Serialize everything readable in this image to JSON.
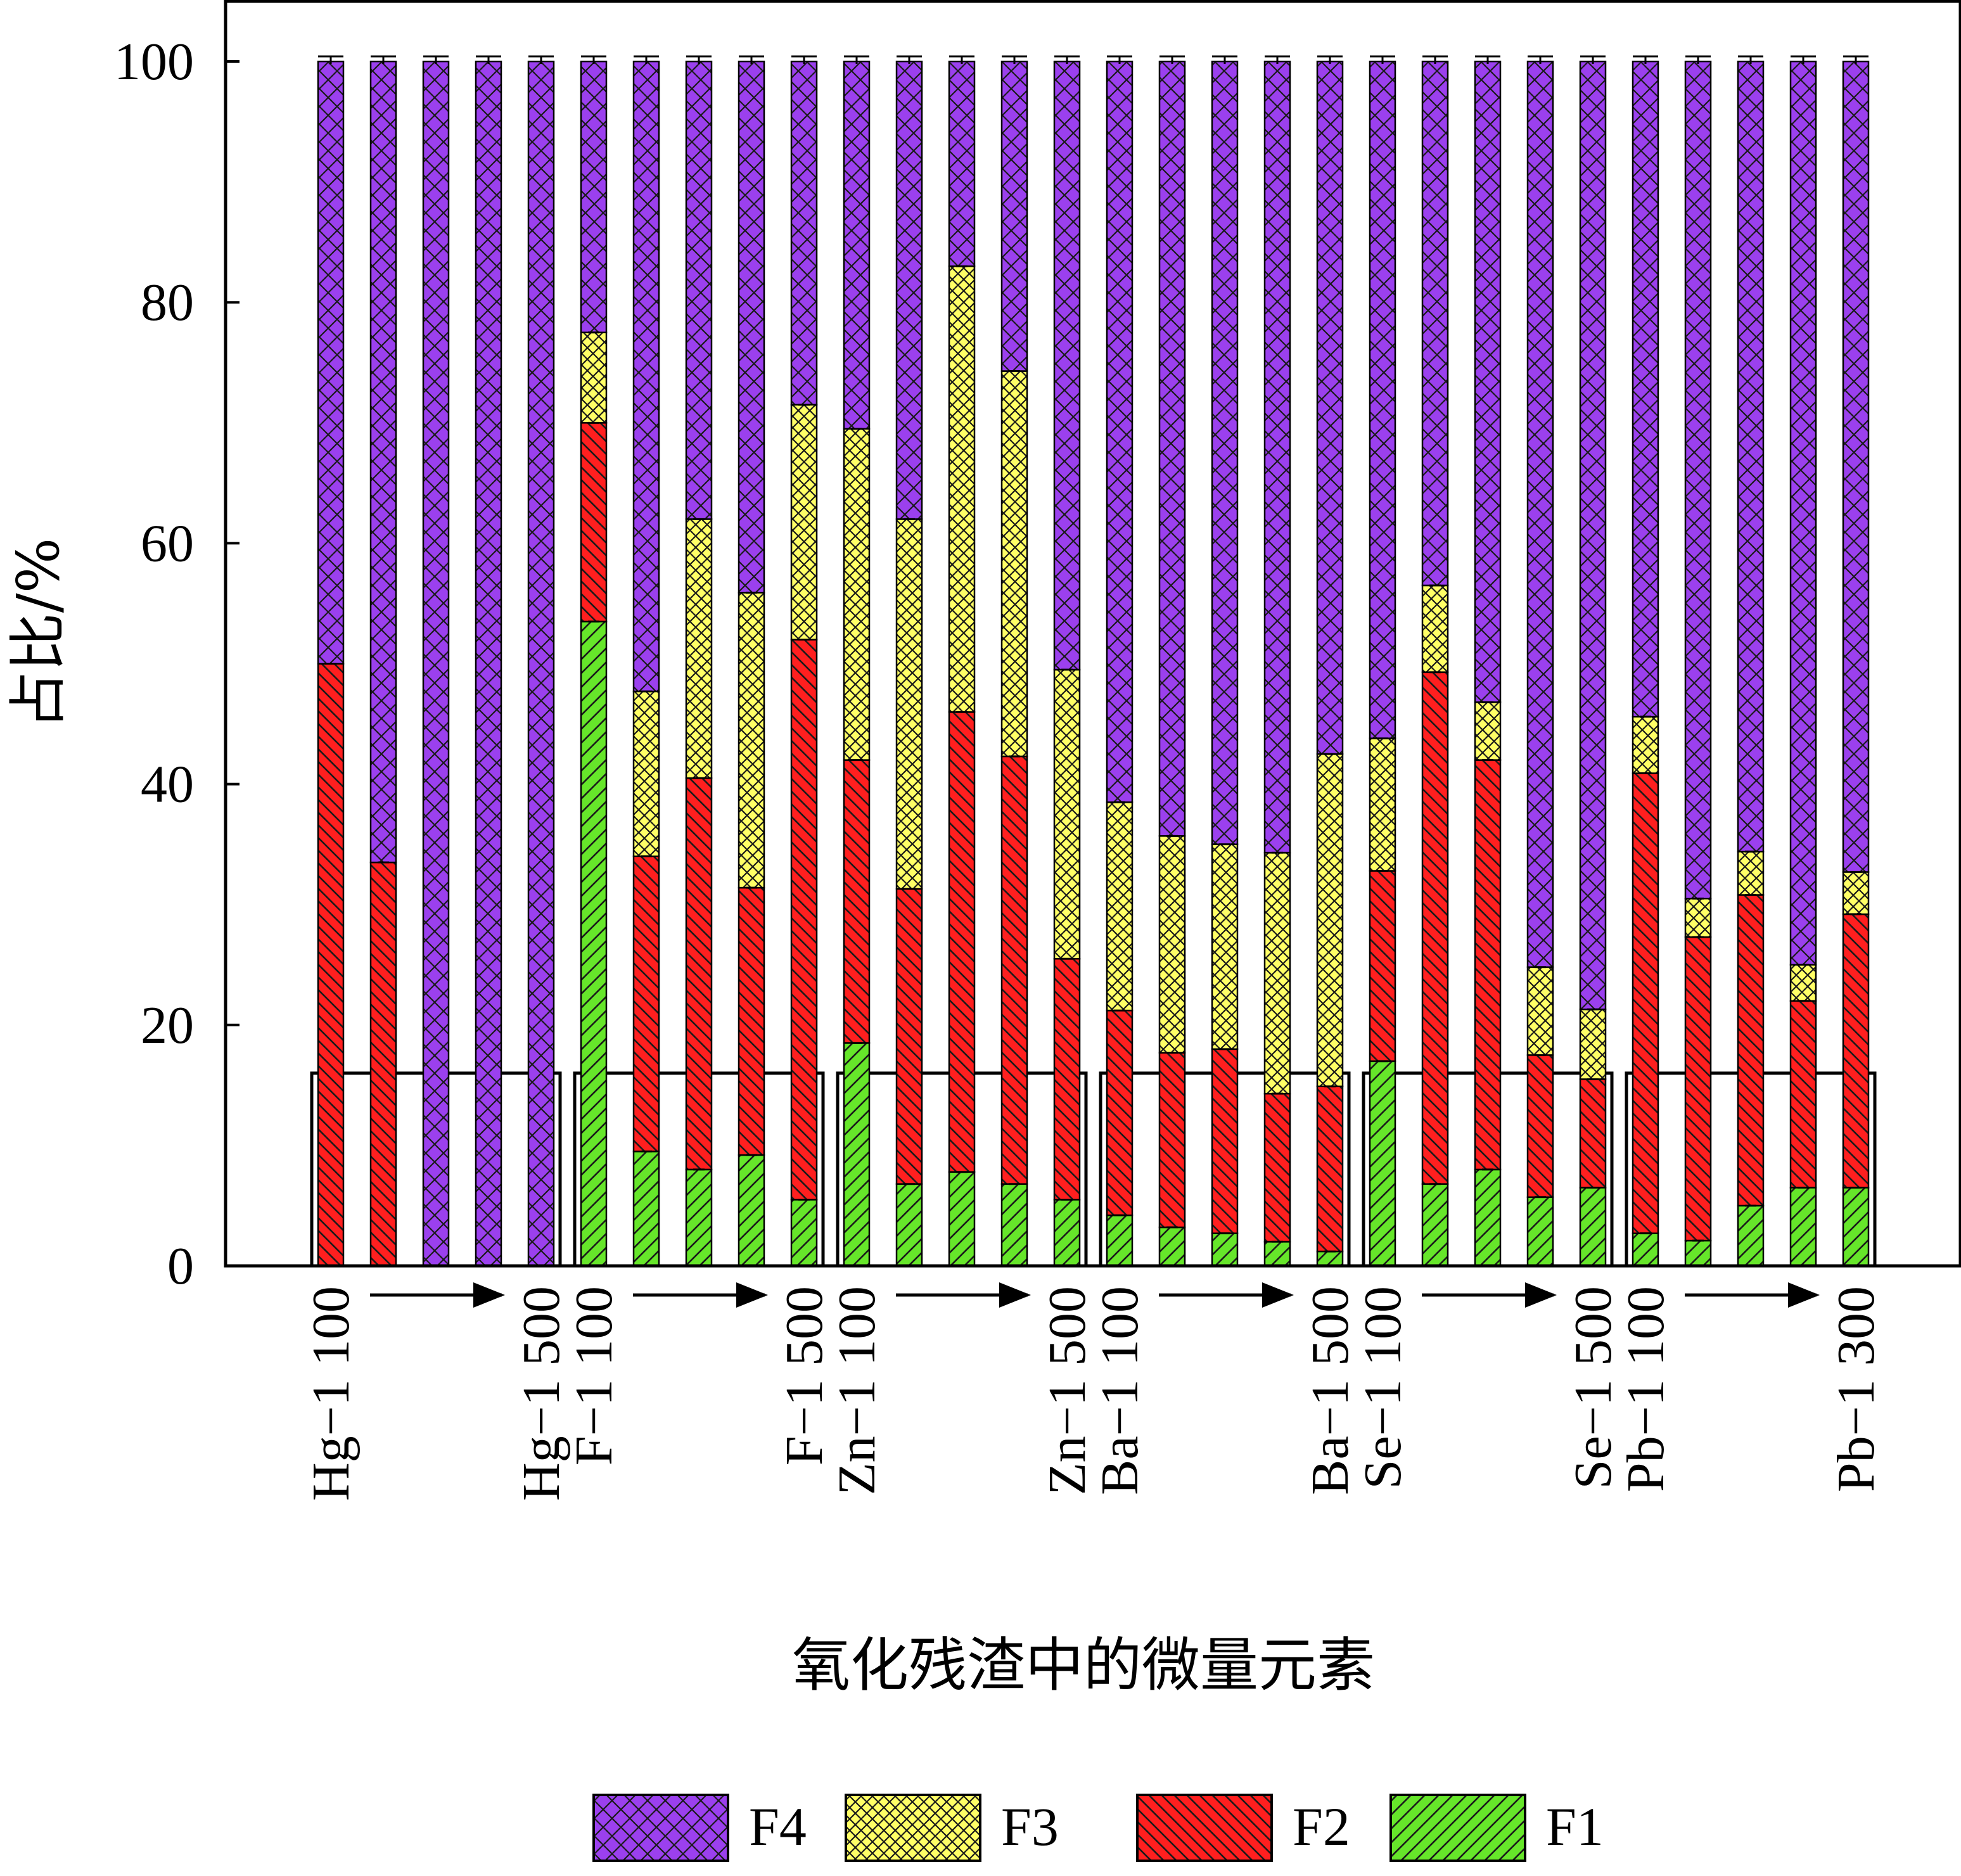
{
  "chart_data": {
    "type": "bar",
    "stacked": true,
    "xlabel": "氧化残渣中的微量元素",
    "ylabel": "占比/%",
    "ylim": [
      0,
      105
    ],
    "yticks": [
      0,
      20,
      40,
      60,
      80,
      100
    ],
    "grid": false,
    "legend_position": "bottom",
    "colors": {
      "F4": "#9b40ee",
      "F3": "#ffff66",
      "F2": "#ff1f1f",
      "F1": "#66e62a"
    },
    "groups": [
      {
        "start_label": "Hg−1 100",
        "end_label": "Hg−1 500"
      },
      {
        "start_label": "F−1 100",
        "end_label": "F−1 500"
      },
      {
        "start_label": "Zn−1 100",
        "end_label": "Zn−1 500"
      },
      {
        "start_label": "Ba−1 100",
        "end_label": "Ba−1 500"
      },
      {
        "start_label": "Se−1 100",
        "end_label": "Se−1 500"
      },
      {
        "start_label": "Pb−1 100",
        "end_label": "Pb−1 300"
      }
    ],
    "legend": [
      "F4",
      "F3",
      "F2",
      "F1"
    ],
    "series": [
      {
        "name": "F1",
        "values": [
          0,
          0,
          0,
          0,
          0,
          53.5,
          9.5,
          8,
          9.2,
          5.5,
          18.5,
          6.8,
          7.8,
          6.8,
          5.5,
          4.2,
          3.2,
          2.7,
          2.0,
          1.2,
          17,
          6.8,
          8,
          5.7,
          6.5,
          2.7,
          2.1,
          5,
          6.5,
          6.5
        ]
      },
      {
        "name": "F2",
        "values": [
          50,
          33.5,
          0,
          0,
          0,
          16.5,
          24.5,
          32.5,
          22.2,
          46.5,
          23.5,
          24.5,
          38.2,
          35.5,
          20,
          17,
          14.5,
          15.3,
          12.3,
          13.7,
          15.8,
          42.5,
          34,
          11.8,
          9,
          38.2,
          25.2,
          25.8,
          15.5,
          22.7
        ]
      },
      {
        "name": "F3",
        "values": [
          0,
          0,
          0,
          0,
          0,
          7.5,
          13.7,
          21.5,
          24.5,
          19.5,
          27.5,
          30.7,
          37,
          32,
          24,
          17.3,
          18,
          17,
          20,
          27.6,
          11,
          7.2,
          4.8,
          7.3,
          5.8,
          4.7,
          3.2,
          3.6,
          3,
          3.5
        ]
      },
      {
        "name": "F4",
        "values": [
          50,
          66.5,
          100,
          100,
          100,
          22.5,
          52.3,
          38,
          44.1,
          28.5,
          30.5,
          38,
          17,
          25.7,
          50.5,
          61.5,
          64.3,
          65,
          65.7,
          57.5,
          56.2,
          43.5,
          53.2,
          75.2,
          78.7,
          54.4,
          69.5,
          65.6,
          75,
          67.3
        ]
      }
    ]
  }
}
